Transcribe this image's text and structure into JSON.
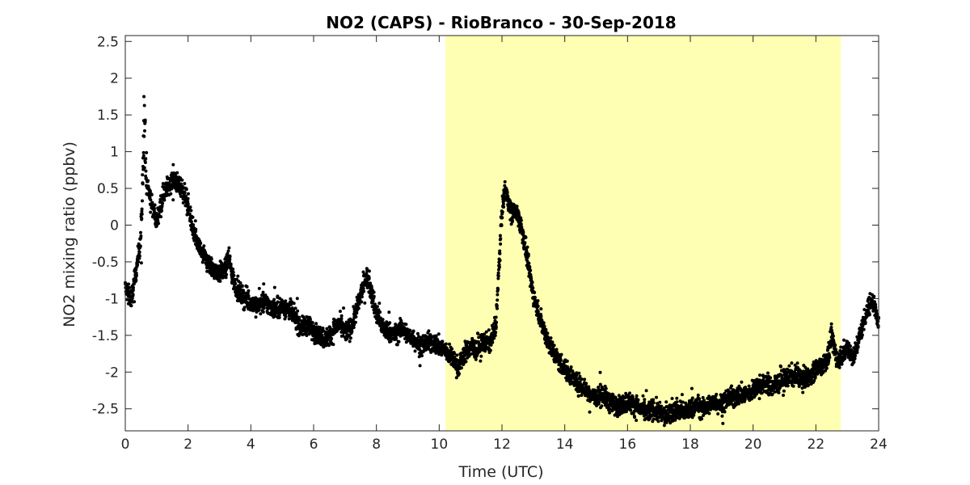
{
  "chart_data": {
    "type": "scatter",
    "title": "NO2 (CAPS) - RioBranco - 30-Sep-2018",
    "xlabel": "Time (UTC)",
    "ylabel": "NO2 mixing ratio (ppbv)",
    "xlim": [
      0,
      24
    ],
    "ylim": [
      -2.8,
      2.58
    ],
    "xticks": [
      "0",
      "2",
      "4",
      "6",
      "8",
      "10",
      "12",
      "14",
      "16",
      "18",
      "20",
      "22",
      "24"
    ],
    "yticks": [
      "-2.5",
      "-2",
      "-1.5",
      "-1",
      "-0.5",
      "0",
      "0.5",
      "1",
      "1.5",
      "2",
      "2.5"
    ],
    "grid": false,
    "daytime_shading": {
      "x_start": 10.2,
      "x_end": 22.8,
      "color": "#ffffb3"
    },
    "marker_color": "#000000",
    "series": [
      {
        "x": [
          0.0,
          0.1,
          0.2,
          0.3,
          0.4,
          0.5,
          0.55,
          0.6,
          0.65,
          0.7,
          0.8,
          0.9,
          1.0,
          1.1,
          1.2,
          1.3,
          1.4,
          1.5,
          1.6,
          1.7,
          1.8,
          1.9,
          2.0,
          2.1,
          2.2,
          2.4,
          2.6,
          2.8,
          3.0,
          3.2,
          3.3,
          3.4,
          3.6,
          3.8,
          4.0,
          4.2,
          4.4,
          4.6,
          4.8,
          5.0,
          5.2,
          5.4,
          5.6,
          5.8,
          6.0,
          6.2,
          6.4,
          6.6,
          6.8,
          7.0,
          7.2,
          7.4,
          7.6,
          7.7,
          7.8,
          8.0,
          8.2,
          8.4,
          8.6,
          8.8,
          9.0,
          9.2,
          9.4,
          9.6,
          9.8,
          10.0,
          10.2,
          10.4,
          10.6,
          10.8,
          11.0,
          11.2,
          11.4,
          11.6,
          11.8,
          11.9,
          12.0,
          12.1,
          12.2,
          12.3,
          12.4,
          12.5,
          12.6,
          12.7,
          12.8,
          12.9,
          13.0,
          13.2,
          13.4,
          13.6,
          13.8,
          14.0,
          14.2,
          14.4,
          14.6,
          14.8,
          15.0,
          15.2,
          15.4,
          15.6,
          15.8,
          16.0,
          16.2,
          16.4,
          16.6,
          16.8,
          17.0,
          17.2,
          17.4,
          17.6,
          17.8,
          18.0,
          18.2,
          18.4,
          18.6,
          18.8,
          19.0,
          19.2,
          19.4,
          19.6,
          19.8,
          20.0,
          20.2,
          20.4,
          20.6,
          20.8,
          21.0,
          21.2,
          21.4,
          21.6,
          21.8,
          22.0,
          22.2,
          22.4,
          22.5,
          22.6,
          22.7,
          22.8,
          23.0,
          23.2,
          23.4,
          23.6,
          23.8,
          24.0
        ],
        "y": [
          -0.85,
          -0.95,
          -1.0,
          -0.75,
          -0.45,
          -0.2,
          0.4,
          1.4,
          0.9,
          0.6,
          0.35,
          0.2,
          0.05,
          0.25,
          0.4,
          0.5,
          0.55,
          0.6,
          0.6,
          0.55,
          0.5,
          0.4,
          0.3,
          0.05,
          -0.15,
          -0.35,
          -0.5,
          -0.6,
          -0.65,
          -0.6,
          -0.4,
          -0.7,
          -0.9,
          -1.0,
          -1.05,
          -1.1,
          -1.05,
          -1.1,
          -1.15,
          -1.1,
          -1.15,
          -1.25,
          -1.4,
          -1.35,
          -1.45,
          -1.5,
          -1.55,
          -1.45,
          -1.35,
          -1.45,
          -1.4,
          -1.1,
          -0.8,
          -0.7,
          -0.85,
          -1.2,
          -1.4,
          -1.45,
          -1.5,
          -1.4,
          -1.5,
          -1.55,
          -1.65,
          -1.6,
          -1.6,
          -1.65,
          -1.7,
          -1.8,
          -1.95,
          -1.75,
          -1.65,
          -1.7,
          -1.6,
          -1.6,
          -1.4,
          -0.6,
          0.2,
          0.5,
          0.35,
          0.15,
          0.2,
          0.15,
          0.0,
          -0.2,
          -0.45,
          -0.7,
          -0.95,
          -1.25,
          -1.5,
          -1.7,
          -1.85,
          -1.95,
          -2.05,
          -2.15,
          -2.2,
          -2.3,
          -2.35,
          -2.3,
          -2.4,
          -2.45,
          -2.45,
          -2.4,
          -2.45,
          -2.5,
          -2.55,
          -2.5,
          -2.55,
          -2.6,
          -2.55,
          -2.5,
          -2.55,
          -2.5,
          -2.45,
          -2.5,
          -2.45,
          -2.4,
          -2.45,
          -2.35,
          -2.35,
          -2.3,
          -2.3,
          -2.25,
          -2.2,
          -2.15,
          -2.2,
          -2.15,
          -2.1,
          -2.05,
          -2.05,
          -2.1,
          -2.05,
          -1.95,
          -1.9,
          -1.8,
          -1.5,
          -1.7,
          -1.85,
          -1.8,
          -1.65,
          -1.8,
          -1.5,
          -1.2,
          -1.0,
          -1.35
        ]
      }
    ]
  }
}
